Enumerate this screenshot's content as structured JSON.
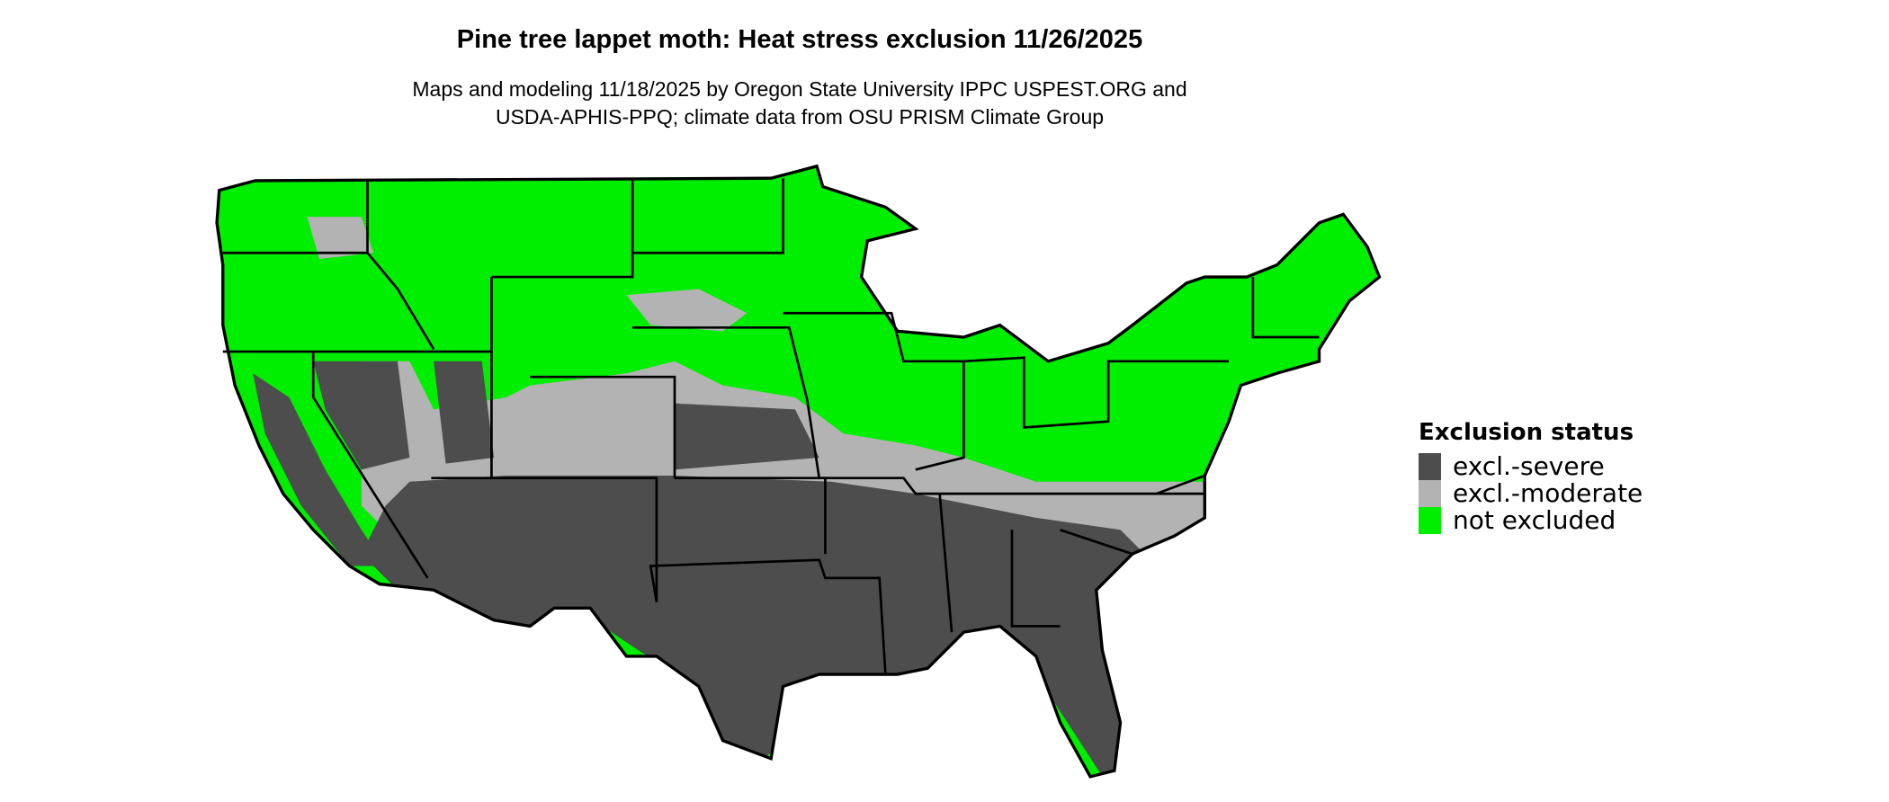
{
  "title": "Pine tree lappet moth: Heat stress exclusion 11/26/2025",
  "subtitle": {
    "line1": "Maps and modeling 11/18/2025 by Oregon State University IPPC USPEST.ORG and",
    "line2": "USDA-APHIS-PPQ; climate data from OSU PRISM Climate Group"
  },
  "legend": {
    "title": "Exclusion status",
    "items": [
      {
        "label": "excl.-severe",
        "color": "#4d4d4d"
      },
      {
        "label": "excl.-moderate",
        "color": "#b3b3b3"
      },
      {
        "label": "not excluded",
        "color": "#00ee00"
      }
    ]
  },
  "map": {
    "region": "Contiguous United States",
    "boundary_color": "#000000"
  }
}
